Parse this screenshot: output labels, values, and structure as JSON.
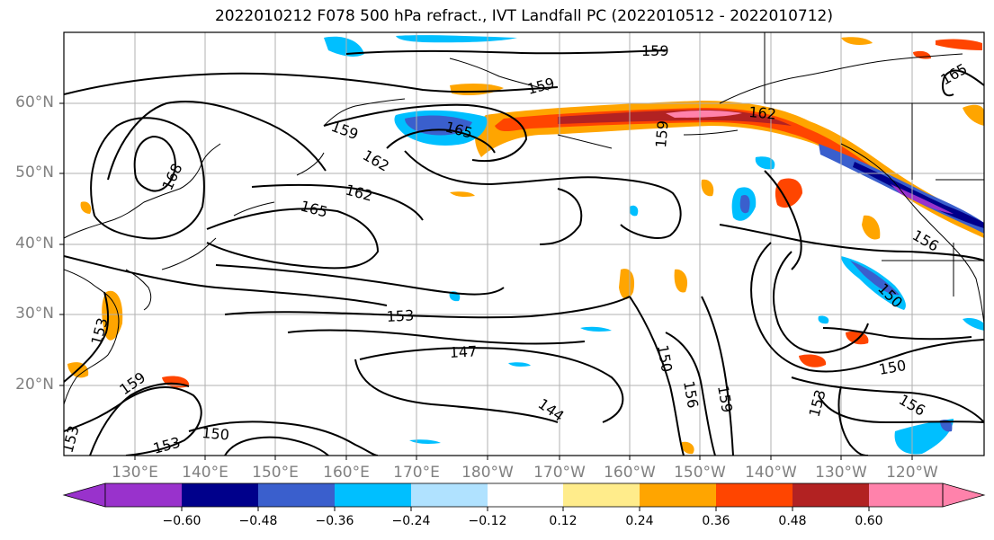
{
  "title": "2022010212 F078 500 hPa refract., IVT Landfall PC (2022010512 - 2022010712)",
  "lat_labels": [
    "60°N",
    "50°N",
    "40°N",
    "30°N",
    "20°N"
  ],
  "lon_labels": [
    "130°E",
    "140°E",
    "150°E",
    "160°E",
    "170°E",
    "180°W",
    "170°W",
    "160°W",
    "150°W",
    "140°W",
    "130°W",
    "120°W"
  ],
  "contour_labels": [
    "159",
    "159",
    "159",
    "165",
    "162",
    "165",
    "162",
    "168",
    "159",
    "165",
    "162",
    "156",
    "150",
    "153",
    "147",
    "150",
    "159",
    "156",
    "150",
    "144",
    "153",
    "159",
    "150",
    "153",
    "156",
    "153",
    "153"
  ],
  "colorbar": {
    "ticks": [
      "−0.60",
      "−0.48",
      "−0.36",
      "−0.24",
      "−0.12",
      "0.12",
      "0.24",
      "0.36",
      "0.48",
      "0.60"
    ],
    "colors": [
      "#9932CC",
      "#00008B",
      "#3A5FCD",
      "#00BFFF",
      "#B0E2FF",
      "#FFFFFF",
      "#FFEC8B",
      "#FFA500",
      "#FF4500",
      "#B22222",
      "#FF82AB"
    ]
  }
}
